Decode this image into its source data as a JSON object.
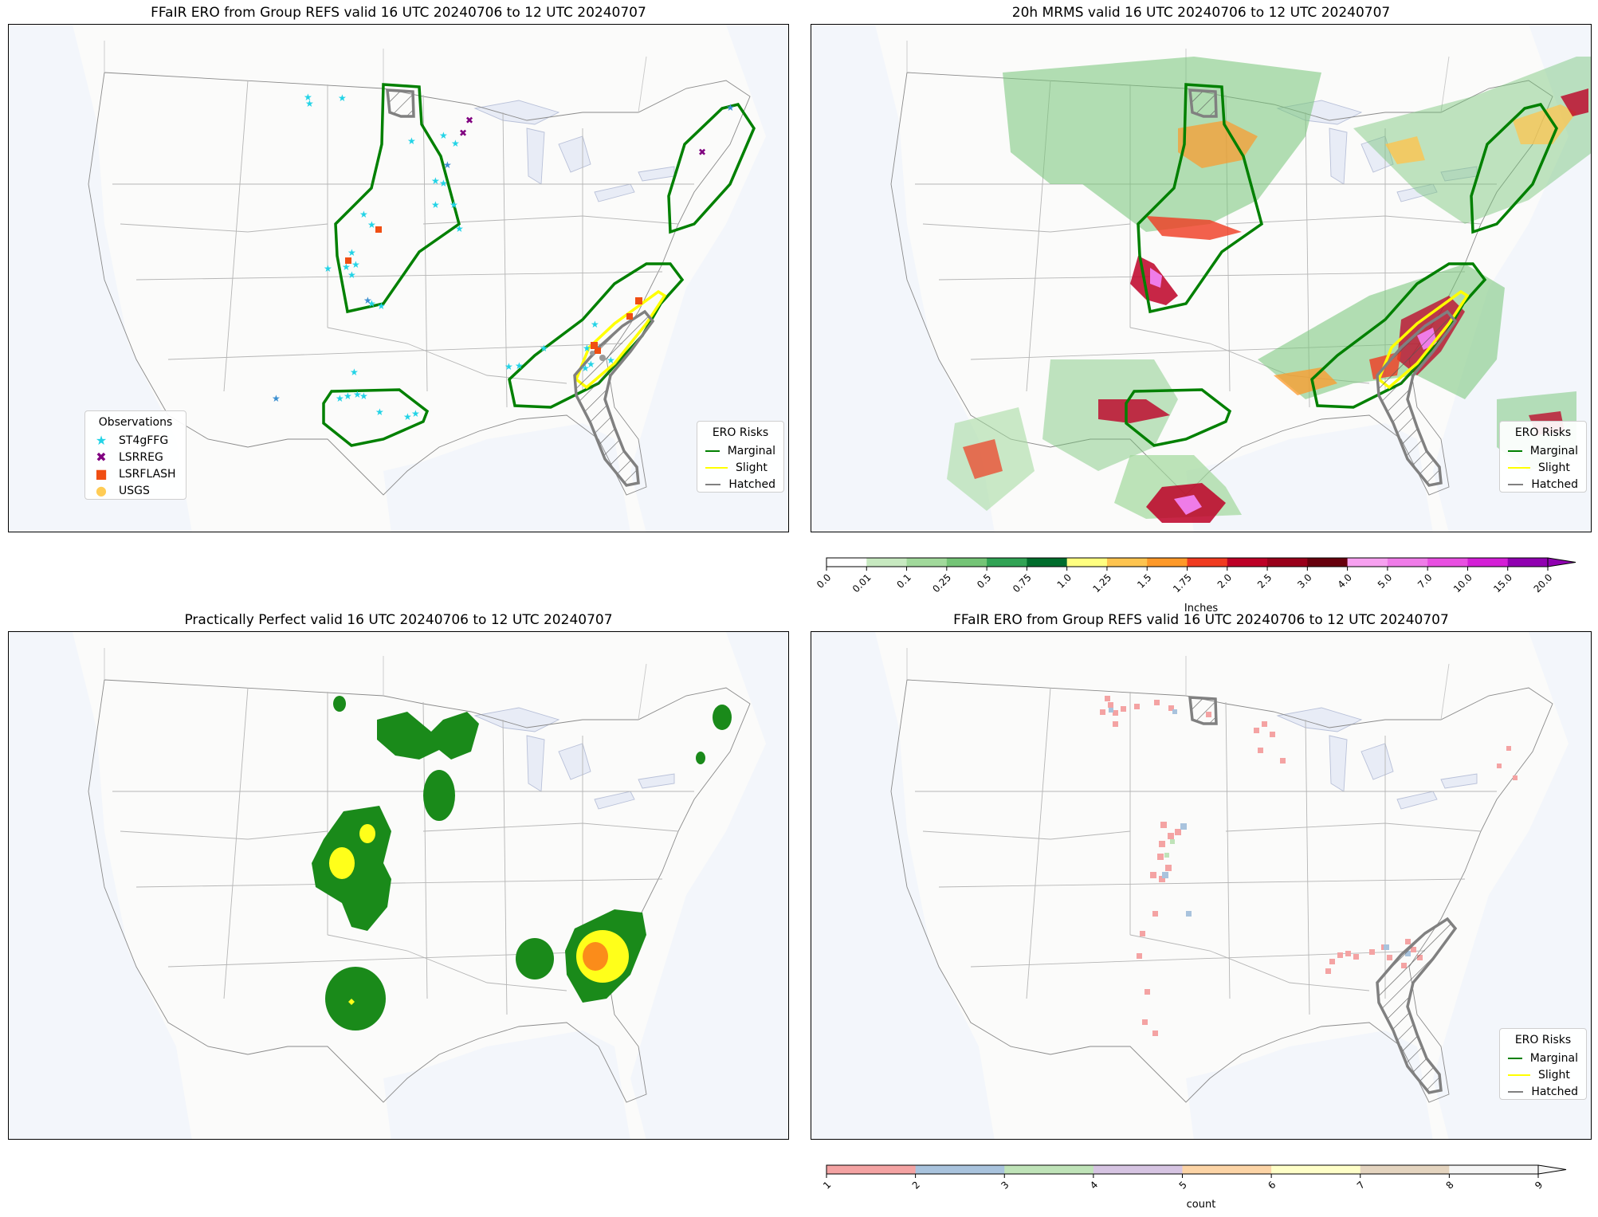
{
  "panels": {
    "p1": {
      "title": "FFaIR ERO from Group REFS valid 16 UTC 20240706 to 12 UTC 20240707"
    },
    "p2": {
      "title": "20h MRMS valid 16 UTC 20240706 to 12 UTC 20240707"
    },
    "p3": {
      "title": "Practically Perfect valid 16 UTC 20240706 to 12 UTC 20240707"
    },
    "p4": {
      "title": "FFaIR ERO from Group REFS valid 16 UTC 20240706 to 12 UTC 20240707"
    }
  },
  "ero_legend": {
    "title": "ERO Risks",
    "items": [
      {
        "label": "Marginal",
        "color": "#008000"
      },
      {
        "label": "Slight",
        "color": "#ffff00"
      },
      {
        "label": "Hatched",
        "color": "#808080"
      }
    ]
  },
  "obs_legend": {
    "title": "Observations",
    "items": [
      {
        "label": "ST4gFFG",
        "color": "#22d3e6",
        "icon": "star-icon"
      },
      {
        "label": "LSRREG",
        "color": "#800080",
        "icon": "x-icon"
      },
      {
        "label": "LSRFLASH",
        "color": "#f04e13",
        "icon": "square-icon"
      },
      {
        "label": "USGS",
        "color": "#ffcc55",
        "icon": "circle-icon"
      }
    ]
  },
  "mrms_colorbar": {
    "label": "Inches",
    "ticks": [
      "0.0",
      "0.01",
      "0.1",
      "0.25",
      "0.5",
      "0.75",
      "1.0",
      "1.25",
      "1.5",
      "1.75",
      "2.0",
      "2.5",
      "3.0",
      "4.0",
      "5.0",
      "7.0",
      "10.0",
      "15.0",
      "20.0"
    ],
    "colors": [
      "#ffffff",
      "#c7e9c0",
      "#a1d99b",
      "#74c476",
      "#31a354",
      "#006d2c",
      "#ffff80",
      "#fec44f",
      "#fe9929",
      "#f03b20",
      "#bd0026",
      "#99001a",
      "#67000d",
      "#f7a1f0",
      "#ef7ce8",
      "#e84fe1",
      "#d41fd6",
      "#9000b0"
    ]
  },
  "count_colorbar": {
    "label": "count",
    "ticks": [
      "1",
      "2",
      "3",
      "4",
      "5",
      "6",
      "7",
      "8",
      "9"
    ],
    "colors": [
      "#f4a3a3",
      "#a9c3dd",
      "#bfe3b8",
      "#d6c4e2",
      "#fcd4a6",
      "#ffffc8",
      "#e4d4bf",
      "#f5f5f5"
    ]
  }
}
